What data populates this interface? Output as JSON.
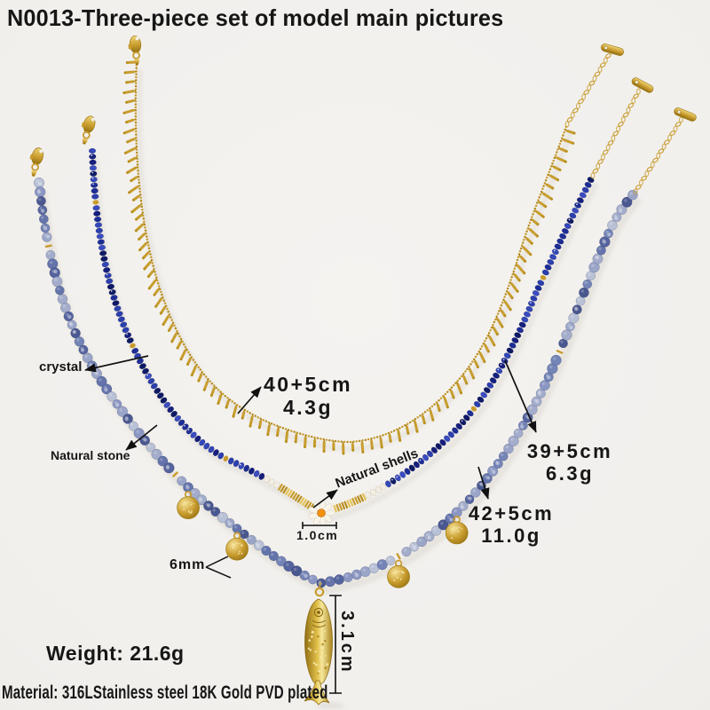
{
  "title": "N0013-Three-piece set of model main pictures",
  "annotations": {
    "fringe_size": "40+5cm",
    "fringe_weight": "4.3g",
    "crystal_size": "39+5cm",
    "crystal_weight": "6.3g",
    "stone_size": "42+5cm",
    "stone_weight": "11.0g",
    "crystal_label": "crystal",
    "stone_label": "Natural stone",
    "shells_label": "Natural shells",
    "shell_size": "1.0cm",
    "coin_size": "6mm",
    "fish_length": "3.1cm"
  },
  "footer": {
    "weight": "Weight: 21.6g",
    "material": "Material: 316LStainless steel 18K Gold PVD plated"
  },
  "colors": {
    "background": "#f1efec",
    "text": "#161616",
    "gold": "#c89b2d",
    "gold_light": "#eed577",
    "gold_dark": "#8f6d12",
    "daisy_center": "#f29111",
    "daisy_petal": "#f8f4ea",
    "crystal_blues": [
      "#2c3fae",
      "#1d2d96",
      "#3a4cc0",
      "#161f7d",
      "#3247b8",
      "#0f1a66"
    ],
    "stone_blues": [
      "#6474ab",
      "#8b97c2",
      "#55649e",
      "#a3adcb",
      "#7484b6",
      "#4a5890",
      "#b9c1d6",
      "#9aa5c8"
    ]
  }
}
